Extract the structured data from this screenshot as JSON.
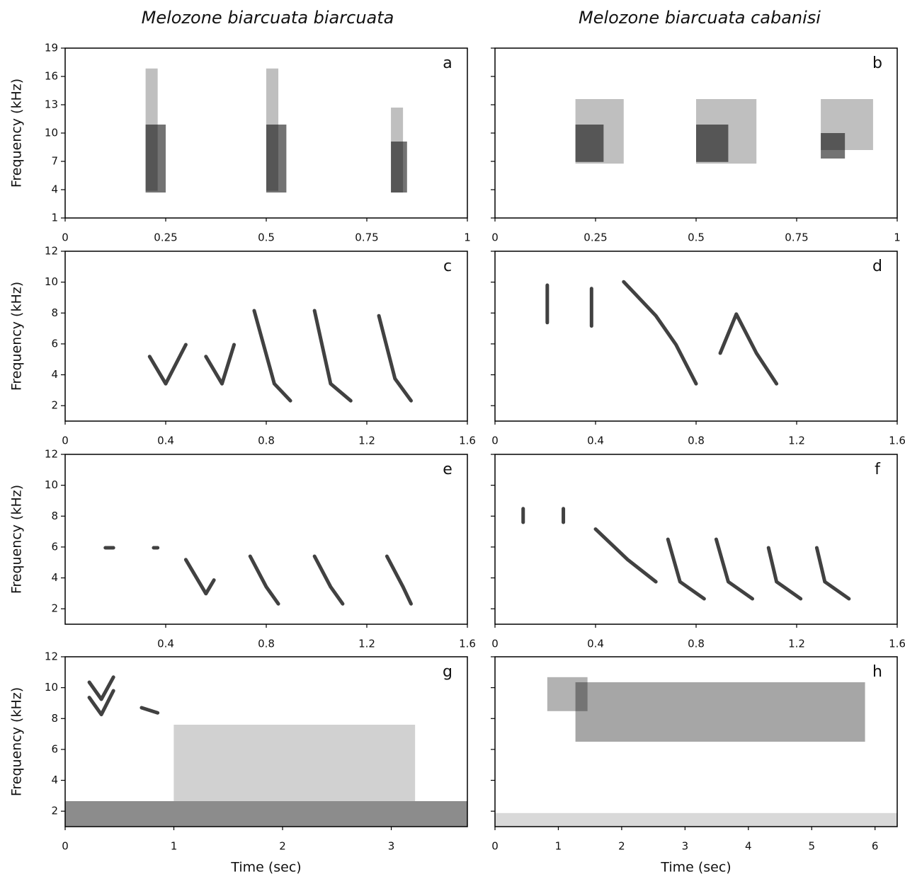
{
  "column_titles": [
    "Melozone biarcuata biarcuata",
    "Melozone biarcuata cabanisi"
  ],
  "chart_data": [
    {
      "type": "spectrogram",
      "panel_label": "a",
      "ylabel": "Frequency (kHz)",
      "xlim": [
        0,
        1
      ],
      "xticks": [
        0,
        0.25,
        0.5,
        0.75,
        1
      ],
      "ylim": [
        1,
        19
      ],
      "yticks": [
        1,
        4,
        7,
        10,
        13,
        16,
        19
      ],
      "show_ytick_labels": true
    },
    {
      "type": "spectrogram",
      "panel_label": "b",
      "xlim": [
        0,
        1
      ],
      "xticks": [
        0,
        0.25,
        0.5,
        0.75,
        1
      ],
      "ylim": [
        1,
        19
      ],
      "yticks": [
        1,
        4,
        7,
        10,
        13,
        16,
        19
      ],
      "show_ytick_labels": false
    },
    {
      "type": "spectrogram",
      "panel_label": "c",
      "ylabel": "Frequency (kHz)",
      "xlim": [
        0,
        1.6
      ],
      "xticks": [
        0,
        0.4,
        0.8,
        1.2,
        1.6
      ],
      "ylim": [
        1,
        12
      ],
      "yticks": [
        2,
        4,
        6,
        8,
        10,
        12
      ],
      "show_ytick_labels": true
    },
    {
      "type": "spectrogram",
      "panel_label": "d",
      "xlim": [
        0,
        1.6
      ],
      "xticks": [
        0,
        0.4,
        0.8,
        1.2,
        1.6
      ],
      "ylim": [
        1,
        12
      ],
      "yticks": [
        2,
        4,
        6,
        8,
        10,
        12
      ],
      "show_ytick_labels": false
    },
    {
      "type": "spectrogram",
      "panel_label": "e",
      "ylabel": "Frequency (kHz)",
      "xlim": [
        0,
        1.6
      ],
      "xticks": [
        0.4,
        0.8,
        1.2,
        1.6
      ],
      "ylim": [
        1,
        12
      ],
      "yticks": [
        2,
        4,
        6,
        8,
        10,
        12
      ],
      "show_ytick_labels": true
    },
    {
      "type": "spectrogram",
      "panel_label": "f",
      "xlim": [
        0,
        1.6
      ],
      "xticks": [
        0,
        0.4,
        0.8,
        1.2,
        1.6
      ],
      "ylim": [
        1,
        12
      ],
      "yticks": [
        2,
        4,
        6,
        8,
        10,
        12
      ],
      "show_ytick_labels": false
    },
    {
      "type": "spectrogram",
      "panel_label": "g",
      "ylabel": "Frequency (kHz)",
      "xlabel": "Time (sec)",
      "xlim": [
        0,
        3.7
      ],
      "xticks": [
        0,
        1,
        2,
        3
      ],
      "ylim": [
        1,
        12
      ],
      "yticks": [
        2,
        4,
        6,
        8,
        10,
        12
      ],
      "show_ytick_labels": true
    },
    {
      "type": "spectrogram",
      "panel_label": "h",
      "xlabel": "Time (sec)",
      "xlim": [
        0,
        6.35
      ],
      "xticks": [
        0,
        1,
        2,
        3,
        4,
        5,
        6
      ],
      "ylim": [
        1,
        12
      ],
      "yticks": [
        2,
        4,
        6,
        8,
        10,
        12
      ],
      "show_ytick_labels": false
    }
  ]
}
